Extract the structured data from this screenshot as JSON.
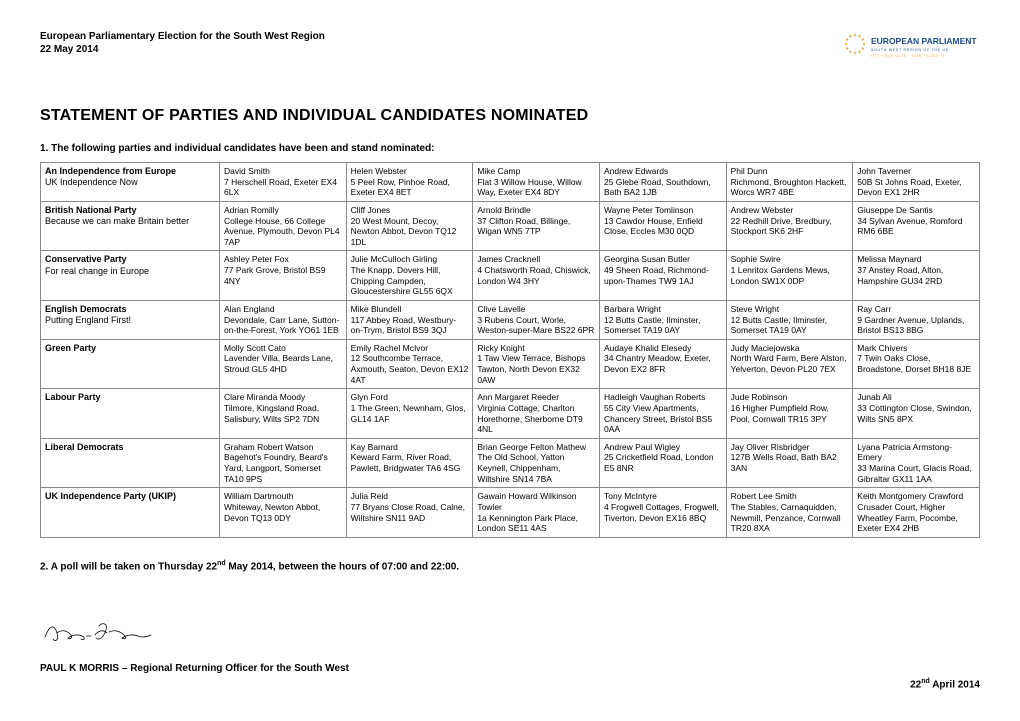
{
  "header": {
    "line1": "European Parliamentary Election for the South West Region",
    "line2": "22 May 2014"
  },
  "logo": {
    "title": "EUROPEAN PARLIAMENT",
    "subtitle1": "SOUTH WEST REGION OF THE UK",
    "subtitle2": "IT'S YOUR VOTE · DON'T LOSE IT",
    "star_color": "#f5a623",
    "title_color": "#1a4b8c"
  },
  "title": "STATEMENT OF PARTIES AND INDIVIDUAL CANDIDATES NOMINATED",
  "intro": "1. The following parties and individual candidates have been and stand nominated:",
  "poll_note_parts": {
    "a": "2. A poll will be taken on Thursday 22",
    "b": "nd",
    "c": " May 2014, between the hours of 07:00 and 22:00."
  },
  "officer": "PAUL K MORRIS – Regional Returning Officer for the South West",
  "signature_text": "Paul K Morris",
  "date_parts": {
    "a": "22",
    "b": "nd",
    "c": " April 2014"
  },
  "columns": {
    "party_width": 170
  },
  "parties": [
    {
      "name": "An Independence from Europe",
      "slogan": "UK Independence Now",
      "candidates": [
        {
          "name": "David Smith",
          "addr": "7 Herschell Road, Exeter  EX4 6LX"
        },
        {
          "name": "Helen Webster",
          "addr": "5 Peel Row, Pinhoe Road, Exeter  EX4 8ET"
        },
        {
          "name": "Mike Camp",
          "addr": "Flat 3 Willow House, Willow Way, Exeter  EX4 8DY"
        },
        {
          "name": "Andrew  Edwards",
          "addr": "25 Glebe Road, Southdown, Bath  BA2 1JB"
        },
        {
          "name": "Phil Dunn",
          "addr": "Richmond, Broughton Hackett, Worcs  WR7 4BE"
        },
        {
          "name": "John Taverner",
          "addr": "50B St Johns Road, Exeter, Devon  EX1 2HR"
        }
      ]
    },
    {
      "name": "British National Party",
      "slogan": "Because we can make Britain better",
      "candidates": [
        {
          "name": "Adrian Romilly",
          "addr": "College House, 66 College Avenue, Plymouth, Devon PL4 7AP"
        },
        {
          "name": "Cliff Jones",
          "addr": "20 West Mount, Decoy, Newton Abbot, Devon  TQ12 1DL"
        },
        {
          "name": "Arnold Brindle",
          "addr": "37 Clifton Road, Billinge, Wigan  WN5 7TP"
        },
        {
          "name": "Wayne Peter Tomlinson",
          "addr": "13 Cawdor House, Enfield Close, Eccles  M30 0QD"
        },
        {
          "name": "Andrew Webster",
          "addr": "22 Redhill Drive, Bredbury, Stockport  SK6 2HF"
        },
        {
          "name": "Giuseppe De Santis",
          "addr": "34 Sylvan Avenue, Romford  RM6 6BE"
        }
      ]
    },
    {
      "name": "Conservative Party",
      "slogan": "For real change in Europe",
      "candidates": [
        {
          "name": "Ashley Peter Fox",
          "addr": "77 Park Grove, Bristol  BS9 4NY"
        },
        {
          "name": "Julie McCulloch Girling",
          "addr": "The Knapp, Dovers Hill, Chipping Campden, Gloucestershire  GL55 6QX"
        },
        {
          "name": "James Cracknell",
          "addr": "4 Chatsworth Road, Chiswick, London  W4 3HY"
        },
        {
          "name": "Georgina Susan Butler",
          "addr": "49 Sheen Road, Richmond-upon-Thames  TW9 1AJ"
        },
        {
          "name": "Sophie Swire",
          "addr": "1 Lenritox Gardens Mews, London  SW1X 0DP"
        },
        {
          "name": "Melissa Maynard",
          "addr": "37 Anstey Road, Alton, Hampshire  GU34 2RD"
        }
      ]
    },
    {
      "name": "English Democrats",
      "slogan": "Putting England First!",
      "candidates": [
        {
          "name": "Alan England",
          "addr": "Devondale, Carr Lane, Sutton-on-the-Forest, York  YO61 1EB"
        },
        {
          "name": "Mike Blundell",
          "addr": "117 Abbey Road, Westbury-on-Trym, Bristol  BS9 3QJ"
        },
        {
          "name": "Clive Lavelle",
          "addr": "3 Rubens Court, Worle, Weston-super-Mare  BS22 6PR"
        },
        {
          "name": "Barbara Wright",
          "addr": "12 Butts Castle, Ilminster, Somerset  TA19 0AY"
        },
        {
          "name": "Steve Wright",
          "addr": "12 Butts Castle, Ilminster, Somerset  TA19 0AY"
        },
        {
          "name": "Ray Carr",
          "addr": "9 Gardner Avenue, Uplands, Bristol  BS13 8BG"
        }
      ]
    },
    {
      "name": "Green Party",
      "slogan": "",
      "candidates": [
        {
          "name": "Molly Scott Cato",
          "addr": "Lavender Villa, Beards Lane, Stroud  GL5 4HD"
        },
        {
          "name": "Emily Rachel McIvor",
          "addr": "12 Southcombe Terrace, Axmouth, Seaton, Devon  EX12 4AT"
        },
        {
          "name": "Ricky Knight",
          "addr": "1 Taw View Terrace, Bishops Tawton, North Devon  EX32 0AW"
        },
        {
          "name": "Audaye Khalid Elesedy",
          "addr": "34 Chantry Meadow, Exeter, Devon  EX2 8FR"
        },
        {
          "name": "Judy Maciejowska",
          "addr": "North Ward Farm, Bere Alston, Yelverton, Devon  PL20 7EX"
        },
        {
          "name": "Mark Chivers",
          "addr": "7 Twin Oaks Close, Broadstone, Dorset  BH18 8JE"
        }
      ]
    },
    {
      "name": "Labour Party",
      "slogan": "",
      "candidates": [
        {
          "name": "Clare Miranda Moody",
          "addr": "Tilmore, Kingsland Road, Salisbury, Wilts  SP2 7DN"
        },
        {
          "name": "Glyn Ford",
          "addr": "1 The Green, Newnham, Glos, GL14 1AF"
        },
        {
          "name": "Ann Margaret Reeder",
          "addr": "Virginia Cottage, Charlton Horethorne, Sherborne  DT9 4NL"
        },
        {
          "name": "Hadleigh Vaughan Roberts",
          "addr": "55 City View Apartments, Chancery Street, Bristol  BS5 0AA"
        },
        {
          "name": "Jude Robinson",
          "addr": "16 Higher Pumpfield Row, Pool, Cornwall  TR15 3PY"
        },
        {
          "name": "Junab Ali",
          "addr": "33 Cottington Close, Swindon, Wilts  SN5 8PX"
        }
      ]
    },
    {
      "name": "Liberal Democrats",
      "slogan": "",
      "candidates": [
        {
          "name": "Graham Robert Watson",
          "addr": "Bagehot's Foundry, Beard's Yard, Langport, Somerset  TA10 9PS"
        },
        {
          "name": "Kay Barnard",
          "addr": "Keward Farm, River Road, Pawlett, Bridgwater  TA6 4SG"
        },
        {
          "name": "Brian George Felton Mathew",
          "addr": "The Old School, Yatton Keynell, Chippenham, Wiltshire  SN14 7BA"
        },
        {
          "name": "Andrew Paul Wigley",
          "addr": "25 Cricketfield Road, London  E5 8NR"
        },
        {
          "name": "Jay Oliver Risbridger",
          "addr": "127B Wells Road, Bath  BA2 3AN"
        },
        {
          "name": "Lyana Patricia Armstong-Emery",
          "addr": "33 Marina Court, Glacis Road, Gibraltar  GX11 1AA"
        }
      ]
    },
    {
      "name": "UK Independence Party (UKIP)",
      "slogan": "",
      "candidates": [
        {
          "name": "William Dartmouth",
          "addr": "Whiteway, Newton Abbot, Devon  TQ13 0DY"
        },
        {
          "name": "Julia Reid",
          "addr": "77 Bryans Close Road, Calne, Wiltshire  SN11 9AD"
        },
        {
          "name": "Gawain Howard Wilkinson Towler",
          "addr": "1a Kennington Park Place, London  SE11 4AS"
        },
        {
          "name": "Tony McIntyre",
          "addr": "4 Frogwell Cottages, Frogwell, Tiverton, Devon  EX16 8BQ"
        },
        {
          "name": "Robert Lee Smith",
          "addr": "The Stables, Carnaquidden, Newmill, Penzance, Cornwall  TR20 8XA"
        },
        {
          "name": "Keith Montgomery Crawford",
          "addr": "Crusader Court, Higher Wheatley Farm, Pocombe, Exeter  EX4 2HB"
        }
      ]
    }
  ]
}
